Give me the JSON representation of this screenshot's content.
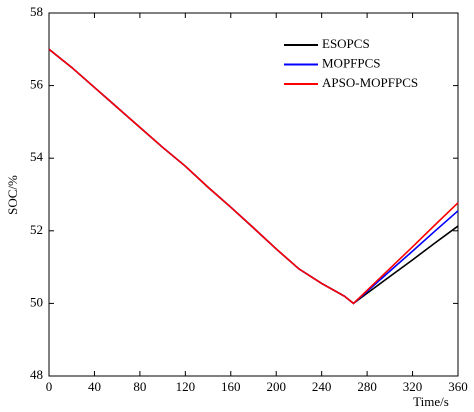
{
  "chart_data": {
    "type": "line",
    "xlabel": "Time/s",
    "ylabel": "SOC/%",
    "x": [
      0,
      20,
      40,
      60,
      80,
      100,
      120,
      140,
      160,
      180,
      200,
      220,
      240,
      260,
      268,
      280,
      300,
      320,
      340,
      360
    ],
    "series": [
      {
        "name": "ESOPCS",
        "color": "#000000",
        "values": [
          57,
          56.5,
          55.95,
          55.4,
          54.85,
          54.3,
          53.78,
          53.2,
          52.65,
          52.08,
          51.5,
          50.95,
          50.55,
          50.2,
          50.0,
          50.28,
          50.74,
          51.2,
          51.67,
          52.13
        ]
      },
      {
        "name": "MOPFPCS",
        "color": "#0000ff",
        "values": [
          57,
          56.5,
          55.95,
          55.4,
          54.85,
          54.3,
          53.78,
          53.2,
          52.65,
          52.08,
          51.5,
          50.95,
          50.55,
          50.2,
          50.0,
          50.33,
          50.89,
          51.44,
          52.0,
          52.55
        ]
      },
      {
        "name": "APSO-MOPFPCS",
        "color": "#ff0000",
        "values": [
          57,
          56.5,
          55.95,
          55.4,
          54.85,
          54.3,
          53.78,
          53.2,
          52.65,
          52.08,
          51.5,
          50.95,
          50.55,
          50.2,
          50.0,
          50.36,
          50.96,
          51.56,
          52.17,
          52.77
        ]
      }
    ],
    "xlim": [
      0,
      360
    ],
    "xticks": [
      0,
      40,
      80,
      120,
      160,
      200,
      240,
      280,
      320,
      360
    ],
    "ylim": [
      48,
      58
    ],
    "yticks": [
      48,
      50,
      52,
      54,
      56,
      58
    ],
    "grid": false
  }
}
